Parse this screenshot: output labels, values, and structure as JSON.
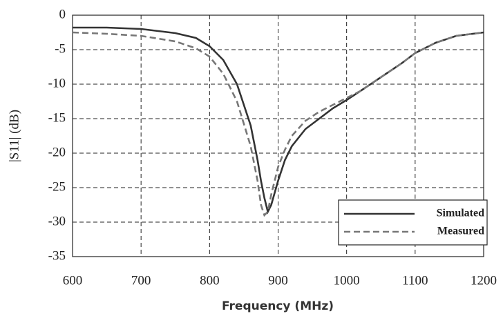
{
  "chart_data": {
    "type": "line",
    "x_label": "Frequency (MHz)",
    "y_label": "|S11| (dB)",
    "x": [
      600,
      650,
      700,
      750,
      780,
      800,
      820,
      840,
      860,
      870,
      875,
      880,
      885,
      890,
      900,
      910,
      920,
      940,
      960,
      980,
      1000,
      1020,
      1050,
      1080,
      1100,
      1130,
      1160,
      1200
    ],
    "series": [
      {
        "name": "Simulated",
        "color": "#333333",
        "line_style": "solid",
        "values": [
          -1.8,
          -1.8,
          -2.0,
          -2.6,
          -3.3,
          -4.5,
          -6.5,
          -10,
          -16,
          -21,
          -24,
          -26.5,
          -28.5,
          -27.5,
          -24,
          -21,
          -19,
          -16.5,
          -15,
          -13.5,
          -12.3,
          -11,
          -9,
          -7,
          -5.5,
          -4,
          -3,
          -2.5
        ]
      },
      {
        "name": "Measured",
        "color": "#777777",
        "line_style": "dashed",
        "values": [
          -2.5,
          -2.7,
          -3.0,
          -3.8,
          -4.8,
          -6,
          -8.5,
          -12.5,
          -19,
          -24,
          -27.5,
          -29,
          -28.5,
          -26,
          -22,
          -19.5,
          -17.5,
          -15.3,
          -14,
          -13,
          -12,
          -11,
          -9,
          -7,
          -5.5,
          -4,
          -3,
          -2.5
        ]
      }
    ],
    "xlim": [
      600,
      1200
    ],
    "xticks": [
      600,
      700,
      800,
      900,
      1000,
      1100,
      1200
    ],
    "ylim": [
      -35,
      0
    ],
    "yticks": [
      0,
      -5,
      -10,
      -15,
      -20,
      -25,
      -30,
      -35
    ],
    "grid": true,
    "legend": "lower right"
  }
}
